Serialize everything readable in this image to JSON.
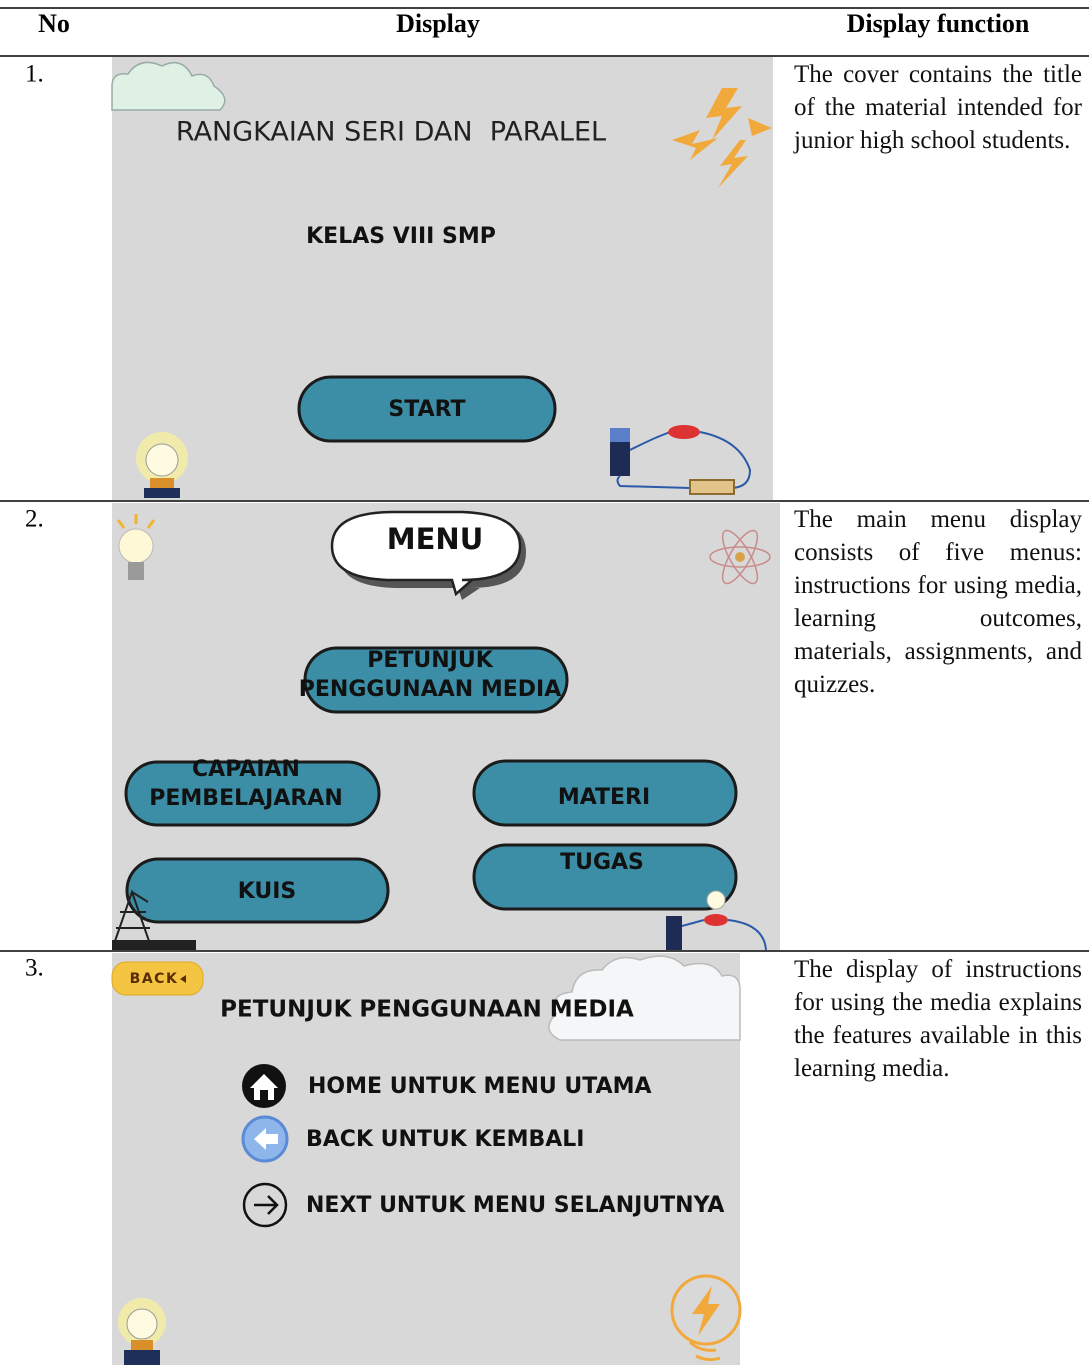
{
  "table": {
    "headers": [
      "No",
      "Display",
      "Display function"
    ],
    "rows": [
      {
        "no": "1.",
        "screen": {
          "title": "RANGKAIAN SERI DAN  PARALEL",
          "subtitle": "KELAS VIII SMP",
          "button": "START"
        },
        "description": "The cover contains the title of the material intended for junior high school students."
      },
      {
        "no": "2.",
        "screen": {
          "title": "MENU",
          "buttons": [
            {
              "lines": [
                "PETUNJUK",
                "PENGGUNAAN MEDIA"
              ]
            },
            {
              "lines": [
                "CAPAIAN",
                "PEMBELAJARAN"
              ]
            },
            {
              "lines": [
                "MATERI"
              ]
            },
            {
              "lines": [
                "KUIS"
              ]
            },
            {
              "lines": [
                "TUGAS"
              ]
            }
          ]
        },
        "description": "The main menu display consists of five menus: instructions for using media, learning outcomes, materials, assignments, and quizzes."
      },
      {
        "no": "3.",
        "screen": {
          "back": "BACK",
          "title": "PETUNJUK PENGGUNAAN MEDIA",
          "items": [
            "HOME UNTUK MENU UTAMA",
            "BACK UNTUK KEMBALI",
            "NEXT UNTUK MENU SELANJUTNYA"
          ]
        },
        "description": "The display of instructions for using the media explains the features available in this learning media."
      }
    ]
  }
}
